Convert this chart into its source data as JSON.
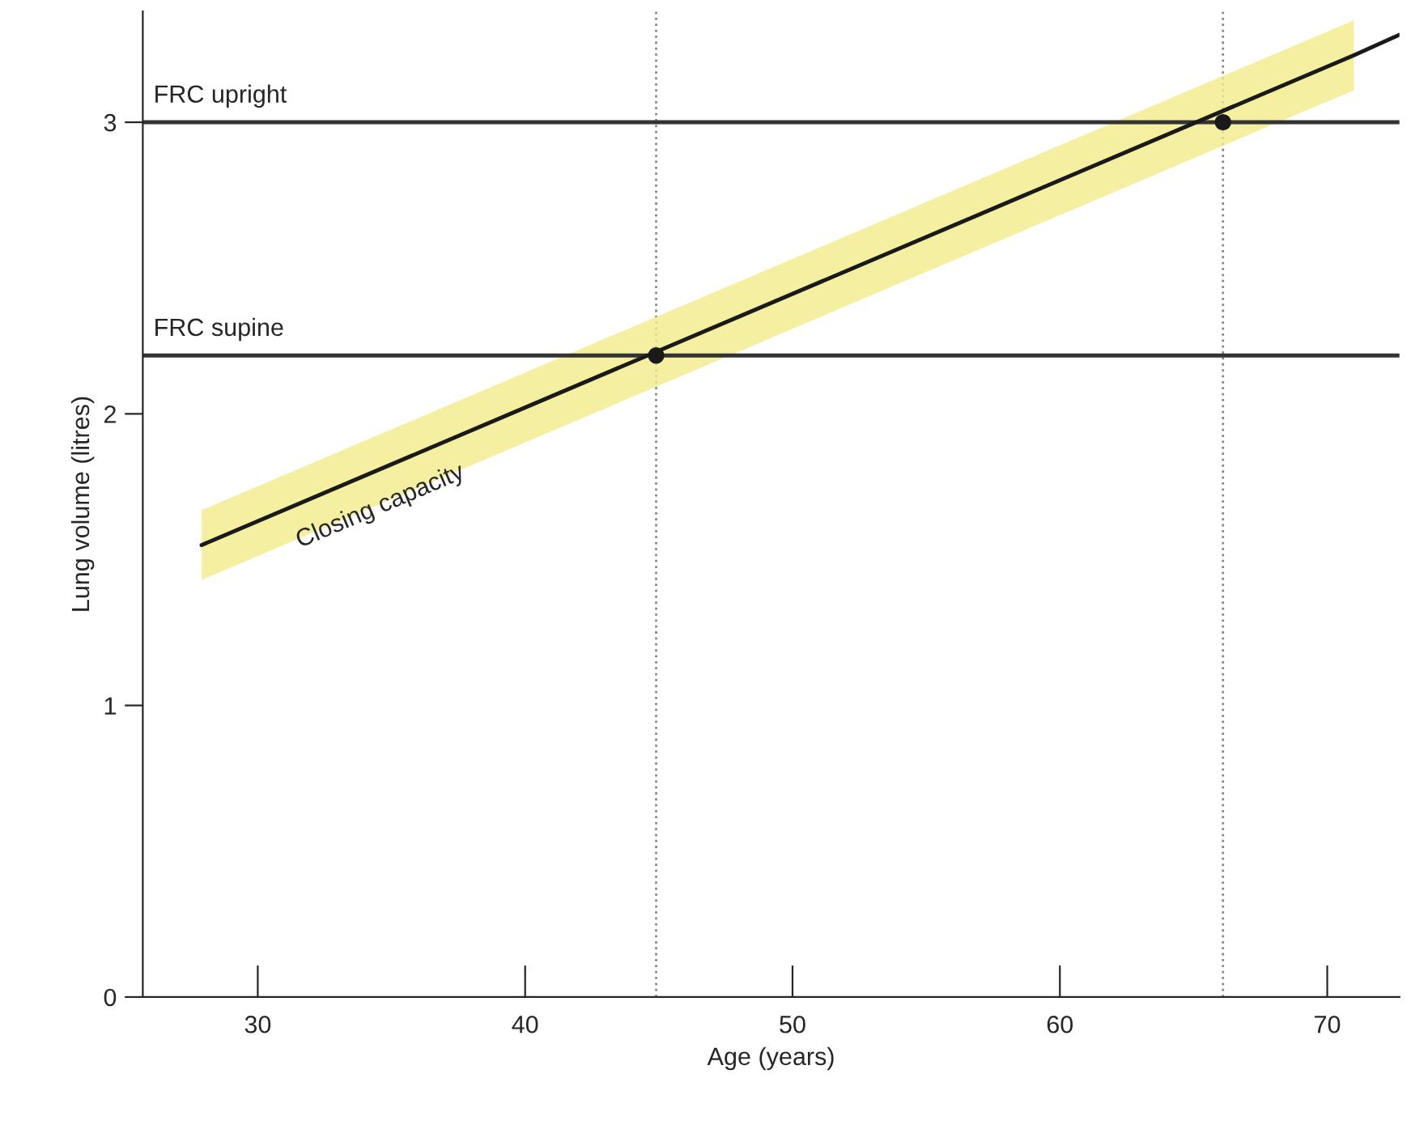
{
  "chart_data": {
    "type": "line",
    "xlabel": "Age (years)",
    "ylabel": "Lung volume (litres)",
    "xlim": [
      25.7,
      72.7
    ],
    "ylim": [
      0,
      3.38
    ],
    "xticks": [
      30,
      40,
      50,
      60,
      70
    ],
    "yticks": [
      0,
      1,
      2,
      3
    ],
    "grid": false,
    "legend": false,
    "series": [
      {
        "name": "Closing capacity",
        "color": "#1a1a1a",
        "x": [
          27.9,
          71.0,
          72.7
        ],
        "values": [
          1.55,
          3.23,
          3.3
        ],
        "lower": [
          1.43,
          3.11,
          null
        ],
        "upper": [
          1.67,
          3.35,
          null
        ]
      },
      {
        "type": "scatter",
        "color": "#1a1a1a",
        "x": [
          44.9,
          66.1
        ],
        "values": [
          2.2,
          3.0
        ],
        "marker": "circle"
      }
    ],
    "ref_lines": [
      {
        "axis": "y",
        "value": 3,
        "label": "FRC upright",
        "color": "#333333",
        "line_style": "solid"
      },
      {
        "axis": "y",
        "value": 2.2,
        "label": "FRC supine",
        "color": "#333333",
        "line_style": "solid"
      },
      {
        "axis": "x",
        "value": 44.9,
        "color": "#888888",
        "line_style": "dotted"
      },
      {
        "axis": "x",
        "value": 66.1,
        "color": "#888888",
        "line_style": "dotted"
      }
    ]
  }
}
